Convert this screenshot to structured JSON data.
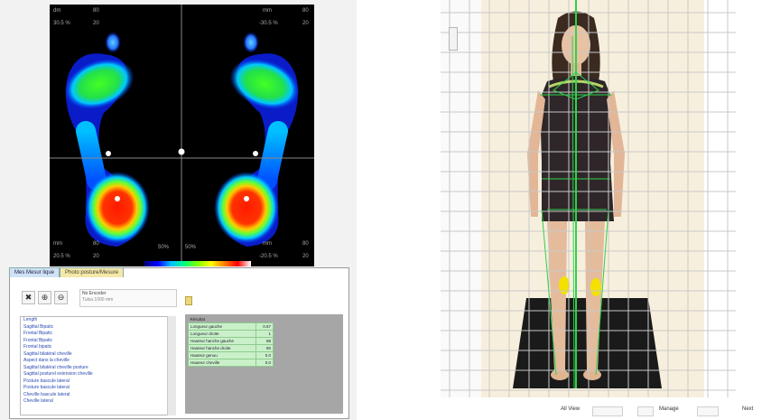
{
  "pressure_map": {
    "top_left": [
      "dm",
      "80",
      "30.5 %",
      "20"
    ],
    "top_right": [
      "mm",
      "80",
      "-30.5 %",
      "20"
    ],
    "bottom_left": [
      "mm",
      "80",
      "20.5 %",
      "20"
    ],
    "bottom_right": [
      "mm",
      "80",
      "-20.5 %",
      "20"
    ],
    "center_left": "50%",
    "center_right": "50%"
  },
  "tabs": [
    {
      "label": "Mes Mesur lique"
    },
    {
      "label": "Photo posture/Mesure"
    }
  ],
  "patient": {
    "name": "No Encoder",
    "detail": "Tulsa 1000 mm"
  },
  "parameters": [
    "Length",
    "Sagittal Bipatic",
    "Frontal Bipatic",
    "Frontal Bipatic",
    "Frontal bipatic",
    "Sagittal bilatéral cheville",
    "Aspect dans la cheville",
    "Sagittal bilatéral cheville posture",
    "Sagittal posturel extension cheville",
    "Posture bascule lateral",
    "Posture bascule lateral",
    "Cheville bascule lateral",
    "Cheville lateral"
  ],
  "results": {
    "header": "Résultat",
    "rows": [
      {
        "label": "Longueur gauche",
        "value": "0.67"
      },
      {
        "label": "Longueur droite",
        "value": "1"
      },
      {
        "label": "Hauteur hanche gauche",
        "value": "88"
      },
      {
        "label": "Hauteur hanche droite",
        "value": "90"
      },
      {
        "label": "Hauteur genou",
        "value": "0.0"
      },
      {
        "label": "Hauteur cheville",
        "value": "0.0"
      }
    ]
  },
  "toolbar": {
    "zoom_label": "All View",
    "mode_label": "Manage",
    "next_label": "Next"
  }
}
